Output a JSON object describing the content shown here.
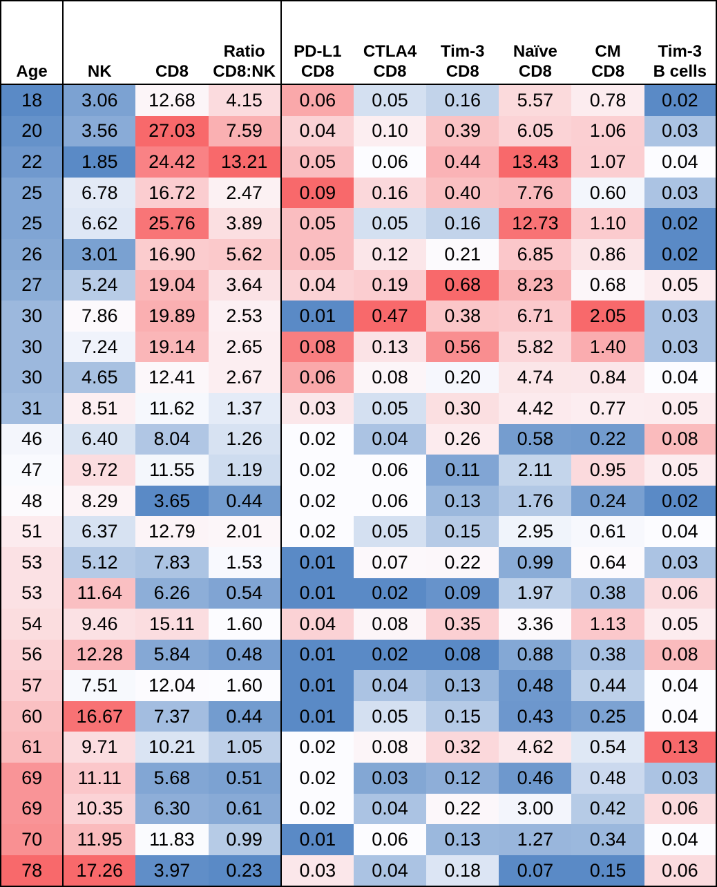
{
  "chart_data": {
    "type": "heatmap",
    "columns": [
      {
        "lines": [
          "Age"
        ]
      },
      {
        "lines": [
          "NK"
        ]
      },
      {
        "lines": [
          "CD8"
        ]
      },
      {
        "lines": [
          "Ratio",
          "CD8:NK"
        ]
      },
      {
        "lines": [
          "PD-L1",
          "CD8"
        ]
      },
      {
        "lines": [
          "CTLA4",
          "CD8"
        ]
      },
      {
        "lines": [
          "Tim-3",
          "CD8"
        ]
      },
      {
        "lines": [
          "Naïve",
          "CD8"
        ]
      },
      {
        "lines": [
          "CM",
          "CD8"
        ]
      },
      {
        "lines": [
          "Tim-3",
          "B cells"
        ]
      }
    ],
    "rows": [
      [
        "18",
        "3.06",
        "12.68",
        "4.15",
        "0.06",
        "0.05",
        "0.16",
        "5.57",
        "0.78",
        "0.02"
      ],
      [
        "20",
        "3.56",
        "27.03",
        "7.59",
        "0.04",
        "0.10",
        "0.39",
        "6.05",
        "1.06",
        "0.03"
      ],
      [
        "22",
        "1.85",
        "24.42",
        "13.21",
        "0.05",
        "0.06",
        "0.44",
        "13.43",
        "1.07",
        "0.04"
      ],
      [
        "25",
        "6.78",
        "16.72",
        "2.47",
        "0.09",
        "0.16",
        "0.40",
        "7.76",
        "0.60",
        "0.03"
      ],
      [
        "25",
        "6.62",
        "25.76",
        "3.89",
        "0.05",
        "0.05",
        "0.16",
        "12.73",
        "1.10",
        "0.02"
      ],
      [
        "26",
        "3.01",
        "16.90",
        "5.62",
        "0.05",
        "0.12",
        "0.21",
        "6.85",
        "0.86",
        "0.02"
      ],
      [
        "27",
        "5.24",
        "19.04",
        "3.64",
        "0.04",
        "0.19",
        "0.68",
        "8.23",
        "0.68",
        "0.05"
      ],
      [
        "30",
        "7.86",
        "19.89",
        "2.53",
        "0.01",
        "0.47",
        "0.38",
        "6.71",
        "2.05",
        "0.03"
      ],
      [
        "30",
        "7.24",
        "19.14",
        "2.65",
        "0.08",
        "0.13",
        "0.56",
        "5.82",
        "1.40",
        "0.03"
      ],
      [
        "30",
        "4.65",
        "12.41",
        "2.67",
        "0.06",
        "0.08",
        "0.20",
        "4.74",
        "0.84",
        "0.04"
      ],
      [
        "31",
        "8.51",
        "11.62",
        "1.37",
        "0.03",
        "0.05",
        "0.30",
        "4.42",
        "0.77",
        "0.05"
      ],
      [
        "46",
        "6.40",
        "8.04",
        "1.26",
        "0.02",
        "0.04",
        "0.26",
        "0.58",
        "0.22",
        "0.08"
      ],
      [
        "47",
        "9.72",
        "11.55",
        "1.19",
        "0.02",
        "0.06",
        "0.11",
        "2.11",
        "0.95",
        "0.05"
      ],
      [
        "48",
        "8.29",
        "3.65",
        "0.44",
        "0.02",
        "0.06",
        "0.13",
        "1.76",
        "0.24",
        "0.02"
      ],
      [
        "51",
        "6.37",
        "12.79",
        "2.01",
        "0.02",
        "0.05",
        "0.15",
        "2.95",
        "0.61",
        "0.04"
      ],
      [
        "53",
        "5.12",
        "7.83",
        "1.53",
        "0.01",
        "0.07",
        "0.22",
        "0.99",
        "0.64",
        "0.03"
      ],
      [
        "53",
        "11.64",
        "6.26",
        "0.54",
        "0.01",
        "0.02",
        "0.09",
        "1.97",
        "0.38",
        "0.06"
      ],
      [
        "54",
        "9.46",
        "15.11",
        "1.60",
        "0.04",
        "0.08",
        "0.35",
        "3.36",
        "1.13",
        "0.05"
      ],
      [
        "56",
        "12.28",
        "5.84",
        "0.48",
        "0.01",
        "0.02",
        "0.08",
        "0.88",
        "0.38",
        "0.08"
      ],
      [
        "57",
        "7.51",
        "12.04",
        "1.60",
        "0.01",
        "0.04",
        "0.13",
        "0.48",
        "0.44",
        "0.04"
      ],
      [
        "60",
        "16.67",
        "7.37",
        "0.44",
        "0.01",
        "0.05",
        "0.15",
        "0.43",
        "0.25",
        "0.04"
      ],
      [
        "61",
        "9.71",
        "10.21",
        "1.05",
        "0.02",
        "0.08",
        "0.32",
        "4.62",
        "0.54",
        "0.13"
      ],
      [
        "69",
        "11.11",
        "5.68",
        "0.51",
        "0.02",
        "0.03",
        "0.12",
        "0.46",
        "0.48",
        "0.03"
      ],
      [
        "69",
        "10.35",
        "6.30",
        "0.61",
        "0.02",
        "0.04",
        "0.22",
        "3.00",
        "0.42",
        "0.06"
      ],
      [
        "70",
        "11.95",
        "11.83",
        "0.99",
        "0.01",
        "0.06",
        "0.13",
        "1.27",
        "0.34",
        "0.04"
      ],
      [
        "78",
        "17.26",
        "3.97",
        "0.23",
        "0.03",
        "0.04",
        "0.18",
        "0.07",
        "0.15",
        "0.06"
      ]
    ],
    "color_scale": {
      "low": "#5a8ac6",
      "mid": "#fcfcff",
      "high": "#f8696b"
    },
    "grid": false,
    "legend": "none"
  }
}
